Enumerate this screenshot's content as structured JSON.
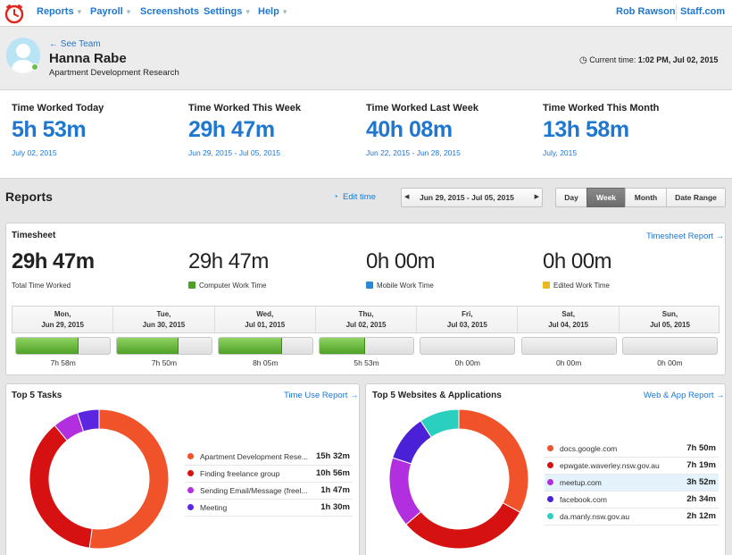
{
  "nav": {
    "items": [
      {
        "label": "Reports"
      },
      {
        "label": "Payroll"
      },
      {
        "label": "Screenshots"
      },
      {
        "label": "Settings"
      },
      {
        "label": "Help"
      }
    ],
    "user": "Rob Rawson",
    "company": "Staff.com"
  },
  "header": {
    "back_link": "← See Team",
    "name": "Hanna Rabe",
    "subtitle": "Apartment Development Research",
    "current_time_label": "Current time:",
    "current_time_value": "1:02 PM, Jul 02, 2015"
  },
  "stats": [
    {
      "label": "Time Worked Today",
      "value": "5h 53m",
      "date": "July 02, 2015"
    },
    {
      "label": "Time Worked This Week",
      "value": "29h 47m",
      "date": "Jun 29, 2015 - Jul 05, 2015"
    },
    {
      "label": "Time Worked Last Week",
      "value": "40h 08m",
      "date": "Jun 22, 2015 - Jun 28, 2015"
    },
    {
      "label": "Time Worked This Month",
      "value": "13h 58m",
      "date": "July, 2015"
    }
  ],
  "reports": {
    "title": "Reports",
    "edit_time": "Edit time",
    "range": "Jun 29, 2015 - Jul 05, 2015",
    "prev_glyph": "◀",
    "next_glyph": "▶",
    "segments": [
      "Day",
      "Week",
      "Month",
      "Date Range"
    ],
    "active_segment": "Week"
  },
  "timesheet": {
    "title": "Timesheet",
    "link": "Timesheet Report →",
    "totals": [
      {
        "value": "29h 47m",
        "label": "Total Time Worked",
        "color": ""
      },
      {
        "value": "29h 47m",
        "label": "Computer Work Time",
        "color": "#4ea126"
      },
      {
        "value": "0h 00m",
        "label": "Mobile Work Time",
        "color": "#2b8ad8"
      },
      {
        "value": "0h 00m",
        "label": "Edited Work Time",
        "color": "#e8b923"
      }
    ],
    "days": [
      {
        "day": "Mon,",
        "date": "Jun 29, 2015",
        "value": "7h 58m",
        "fraction": 0.665
      },
      {
        "day": "Tue,",
        "date": "Jun 30, 2015",
        "value": "7h 50m",
        "fraction": 0.653
      },
      {
        "day": "Wed,",
        "date": "Jul 01, 2015",
        "value": "8h 05m",
        "fraction": 0.674
      },
      {
        "day": "Thu,",
        "date": "Jul 02, 2015",
        "value": "5h 53m",
        "fraction": 0.49
      },
      {
        "day": "Fri,",
        "date": "Jul 03, 2015",
        "value": "0h 00m",
        "fraction": 0
      },
      {
        "day": "Sat,",
        "date": "Jul 04, 2015",
        "value": "0h 00m",
        "fraction": 0
      },
      {
        "day": "Sun,",
        "date": "Jul 05, 2015",
        "value": "0h 00m",
        "fraction": 0
      }
    ]
  },
  "tasks": {
    "title": "Top 5 Tasks",
    "link": "Time Use Report →",
    "chart_data": {
      "type": "pie",
      "labels": [
        "Apartment Development Rese...",
        "Finding freelance group",
        "Sending Email/Message (freel...",
        "Meeting"
      ],
      "values": [
        15.53,
        10.93,
        1.78,
        1.5
      ],
      "durations": [
        "15h 32m",
        "10h 56m",
        "1h 47m",
        "1h 30m"
      ],
      "colors": [
        "#f0522a",
        "#d61111",
        "#b22fe0",
        "#5a26e0"
      ]
    }
  },
  "websites": {
    "title": "Top 5 Websites & Applications",
    "link": "Web & App Report →",
    "highlight_index": 2,
    "chart_data": {
      "type": "pie",
      "labels": [
        "docs.google.com",
        "epwgate.waverley.nsw.gov.au",
        "meetup.com",
        "facebook.com",
        "da.manly.nsw.gov.au"
      ],
      "values": [
        7.83,
        7.32,
        3.87,
        2.57,
        2.2
      ],
      "durations": [
        "7h 50m",
        "7h 19m",
        "3h 52m",
        "2h 34m",
        "2h 12m"
      ],
      "colors": [
        "#f0522a",
        "#d61111",
        "#b22fe0",
        "#4a21d6",
        "#2bcfbf"
      ]
    }
  }
}
